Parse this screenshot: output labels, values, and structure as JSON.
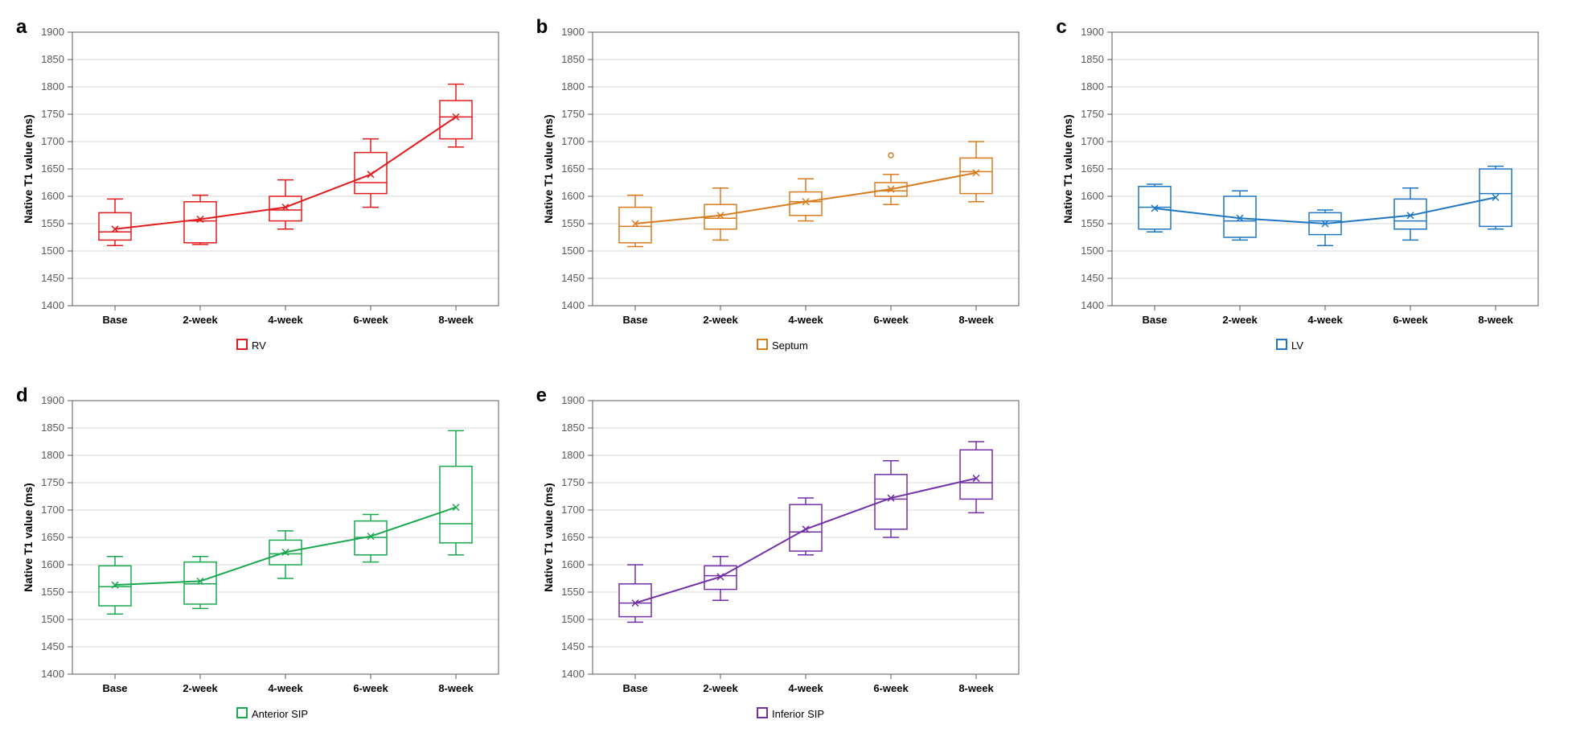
{
  "global": {
    "ylabel": "Native T1 value (ms)",
    "categories": [
      "Base",
      "2-week",
      "4-week",
      "6-week",
      "8-week"
    ],
    "ylim": [
      1400,
      1900
    ],
    "ytick_step": 50,
    "background_color": "#ffffff",
    "grid_color": "#d9d9d9",
    "axis_color": "#595959",
    "tick_fontsize": 13,
    "label_fontsize": 14,
    "legend_fontsize": 13,
    "line_width": 2,
    "box_line_width": 1.5,
    "whisker_width": 1.5,
    "mean_marker": "x",
    "mean_marker_size": 8
  },
  "panels": [
    {
      "id": "a",
      "legend": "RV",
      "color": "#e31a1c",
      "boxes": [
        {
          "min": 1510,
          "q1": 1520,
          "median": 1535,
          "q3": 1570,
          "max": 1595,
          "mean": 1540
        },
        {
          "min": 1512,
          "q1": 1515,
          "median": 1555,
          "q3": 1590,
          "max": 1602,
          "mean": 1558
        },
        {
          "min": 1540,
          "q1": 1555,
          "median": 1575,
          "q3": 1600,
          "max": 1630,
          "mean": 1580
        },
        {
          "min": 1580,
          "q1": 1605,
          "median": 1625,
          "q3": 1680,
          "max": 1705,
          "mean": 1640
        },
        {
          "min": 1690,
          "q1": 1705,
          "median": 1745,
          "q3": 1775,
          "max": 1805,
          "mean": 1745
        }
      ],
      "outliers": []
    },
    {
      "id": "b",
      "legend": "Septum",
      "color": "#d97b1f",
      "boxes": [
        {
          "min": 1508,
          "q1": 1515,
          "median": 1545,
          "q3": 1580,
          "max": 1602,
          "mean": 1550
        },
        {
          "min": 1520,
          "q1": 1540,
          "median": 1560,
          "q3": 1585,
          "max": 1615,
          "mean": 1565
        },
        {
          "min": 1555,
          "q1": 1565,
          "median": 1590,
          "q3": 1608,
          "max": 1632,
          "mean": 1590
        },
        {
          "min": 1585,
          "q1": 1600,
          "median": 1610,
          "q3": 1625,
          "max": 1640,
          "mean": 1613
        },
        {
          "min": 1590,
          "q1": 1605,
          "median": 1645,
          "q3": 1670,
          "max": 1700,
          "mean": 1643
        }
      ],
      "outliers": [
        {
          "cat": 3,
          "value": 1675
        }
      ]
    },
    {
      "id": "c",
      "legend": "LV",
      "color": "#1f77c4",
      "boxes": [
        {
          "min": 1535,
          "q1": 1540,
          "median": 1580,
          "q3": 1618,
          "max": 1622,
          "mean": 1578
        },
        {
          "min": 1520,
          "q1": 1525,
          "median": 1555,
          "q3": 1600,
          "max": 1610,
          "mean": 1560
        },
        {
          "min": 1510,
          "q1": 1530,
          "median": 1555,
          "q3": 1570,
          "max": 1575,
          "mean": 1550
        },
        {
          "min": 1520,
          "q1": 1540,
          "median": 1555,
          "q3": 1595,
          "max": 1615,
          "mean": 1565
        },
        {
          "min": 1540,
          "q1": 1545,
          "median": 1605,
          "q3": 1650,
          "max": 1655,
          "mean": 1598
        }
      ],
      "outliers": []
    },
    {
      "id": "d",
      "legend": "Anterior SIP",
      "color": "#1aa84f",
      "boxes": [
        {
          "min": 1510,
          "q1": 1525,
          "median": 1560,
          "q3": 1598,
          "max": 1615,
          "mean": 1563
        },
        {
          "min": 1520,
          "q1": 1528,
          "median": 1565,
          "q3": 1605,
          "max": 1615,
          "mean": 1570
        },
        {
          "min": 1575,
          "q1": 1600,
          "median": 1620,
          "q3": 1645,
          "max": 1662,
          "mean": 1623
        },
        {
          "min": 1605,
          "q1": 1618,
          "median": 1650,
          "q3": 1680,
          "max": 1692,
          "mean": 1652
        },
        {
          "min": 1618,
          "q1": 1640,
          "median": 1675,
          "q3": 1780,
          "max": 1845,
          "mean": 1705
        }
      ],
      "outliers": []
    },
    {
      "id": "e",
      "legend": "Inferior SIP",
      "color": "#722fa8",
      "boxes": [
        {
          "min": 1495,
          "q1": 1505,
          "median": 1530,
          "q3": 1565,
          "max": 1600,
          "mean": 1530
        },
        {
          "min": 1535,
          "q1": 1555,
          "median": 1580,
          "q3": 1598,
          "max": 1615,
          "mean": 1578
        },
        {
          "min": 1618,
          "q1": 1625,
          "median": 1660,
          "q3": 1710,
          "max": 1722,
          "mean": 1665
        },
        {
          "min": 1650,
          "q1": 1665,
          "median": 1720,
          "q3": 1765,
          "max": 1790,
          "mean": 1722
        },
        {
          "min": 1695,
          "q1": 1720,
          "median": 1750,
          "q3": 1810,
          "max": 1825,
          "mean": 1758
        }
      ],
      "outliers": []
    }
  ]
}
